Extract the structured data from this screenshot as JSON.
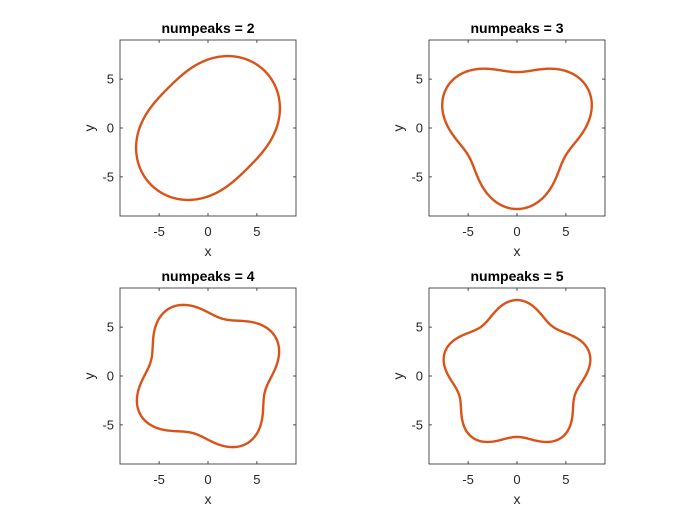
{
  "chart_data": [
    {
      "type": "line",
      "title": "numpeaks = 2",
      "xlabel": "x",
      "ylabel": "y",
      "xlim": [
        -9,
        9
      ],
      "ylim": [
        -9,
        9
      ],
      "xticks": [
        -5,
        0,
        5
      ],
      "xtick_labels": [
        "-5",
        "0",
        "5"
      ],
      "yticks": [
        -5,
        0,
        5
      ],
      "ytick_labels": [
        "-5",
        "0",
        "5"
      ],
      "grid": false,
      "color": "#D95319",
      "polar_curve": {
        "base_radius": 7,
        "amplitude": 0.35,
        "numpeaks": 2,
        "phase_deg": 45
      }
    },
    {
      "type": "line",
      "title": "numpeaks = 3",
      "xlabel": "x",
      "ylabel": "y",
      "xlim": [
        -9,
        9
      ],
      "ylim": [
        -9,
        9
      ],
      "xticks": [
        -5,
        0,
        5
      ],
      "xtick_labels": [
        "-5",
        "0",
        "5"
      ],
      "yticks": [
        -5,
        0,
        5
      ],
      "ytick_labels": [
        "-5",
        "0",
        "5"
      ],
      "grid": false,
      "color": "#D95319",
      "polar_curve": {
        "base_radius": 7,
        "amplitude": 0.55,
        "numpeaks": 3,
        "phase_deg": 30
      }
    },
    {
      "type": "line",
      "title": "numpeaks = 4",
      "xlabel": "x",
      "ylabel": "y",
      "xlim": [
        -9,
        9
      ],
      "ylim": [
        -9,
        9
      ],
      "xticks": [
        -5,
        0,
        5
      ],
      "xtick_labels": [
        "-5",
        "0",
        "5"
      ],
      "yticks": [
        -5,
        0,
        5
      ],
      "ytick_labels": [
        "-5",
        "0",
        "5"
      ],
      "grid": false,
      "color": "#D95319",
      "polar_curve": {
        "base_radius": 7,
        "amplitude": 0.55,
        "numpeaks": 4,
        "phase_deg": 30
      }
    },
    {
      "type": "line",
      "title": "numpeaks = 5",
      "xlabel": "x",
      "ylabel": "y",
      "xlim": [
        -9,
        9
      ],
      "ylim": [
        -9,
        9
      ],
      "xticks": [
        -5,
        0,
        5
      ],
      "xtick_labels": [
        "-5",
        "0",
        "5"
      ],
      "yticks": [
        -5,
        0,
        5
      ],
      "ytick_labels": [
        "-5",
        "0",
        "5"
      ],
      "grid": false,
      "color": "#D95319",
      "polar_curve": {
        "base_radius": 7,
        "amplitude": 0.55,
        "numpeaks": 5,
        "phase_deg": 90
      }
    }
  ]
}
